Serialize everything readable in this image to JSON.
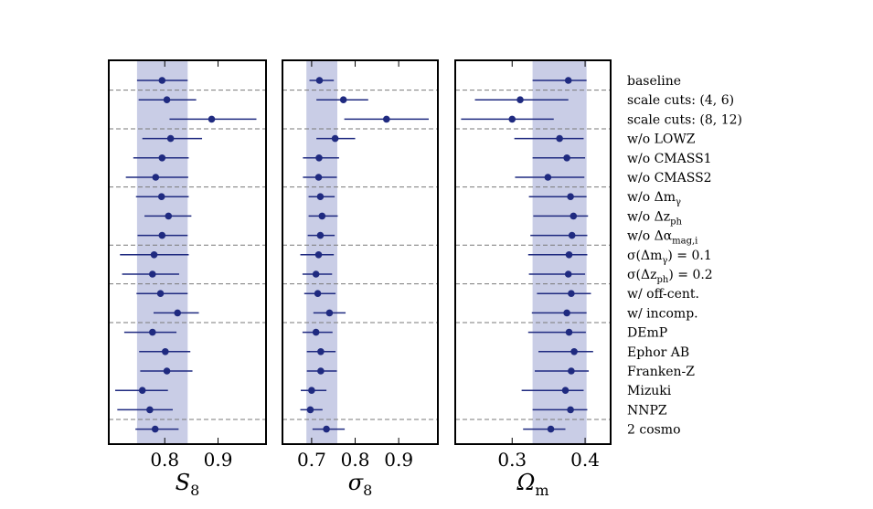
{
  "chart_data": {
    "type": "scatter",
    "description_type": "errorbar-forest",
    "rows": [
      {
        "label": "baseline",
        "sub": null
      },
      {
        "label": "scale cuts: (4, 6)",
        "sub": null
      },
      {
        "label": "scale cuts: (8, 12)",
        "sub": null
      },
      {
        "label": "w/o LOWZ",
        "sub": null
      },
      {
        "label": "w/o CMASS1",
        "sub": null
      },
      {
        "label": "w/o CMASS2",
        "sub": null
      },
      {
        "label": "w/o Δm",
        "sub": "γ"
      },
      {
        "label": "w/o Δz",
        "sub": "ph"
      },
      {
        "label": "w/o Δα",
        "sub": "mag,i"
      },
      {
        "label": "σ(Δm",
        "sub": "γ",
        "suffix": ") = 0.1"
      },
      {
        "label": "σ(Δz",
        "sub": "ph",
        "suffix": ") = 0.2"
      },
      {
        "label": "w/ off-cent.",
        "sub": null
      },
      {
        "label": "w/ incomp.",
        "sub": null
      },
      {
        "label": "DEmP",
        "sub": null
      },
      {
        "label": "Ephor AB",
        "sub": null
      },
      {
        "label": "Franken-Z",
        "sub": null
      },
      {
        "label": "Mizuki",
        "sub": null
      },
      {
        "label": "NNPZ",
        "sub": null
      },
      {
        "label": "2 cosmo",
        "sub": null
      }
    ],
    "separators_after_row": [
      0,
      2,
      5,
      8,
      10,
      12,
      17
    ],
    "panels": [
      {
        "xlabel": "S",
        "xlabel_sub": "8",
        "xlim": [
          0.695,
          0.99
        ],
        "ticks": [
          0.8,
          0.9
        ],
        "tick_labels": [
          "0.8",
          "0.9"
        ],
        "band": [
          0.748,
          0.843
        ],
        "points": [
          {
            "value": 0.795,
            "lo": 0.748,
            "hi": 0.843
          },
          {
            "value": 0.804,
            "lo": 0.751,
            "hi": 0.859
          },
          {
            "value": 0.888,
            "lo": 0.809,
            "hi": 0.972
          },
          {
            "value": 0.811,
            "lo": 0.758,
            "hi": 0.87
          },
          {
            "value": 0.795,
            "lo": 0.741,
            "hi": 0.845
          },
          {
            "value": 0.783,
            "lo": 0.727,
            "hi": 0.844
          },
          {
            "value": 0.794,
            "lo": 0.746,
            "hi": 0.845
          },
          {
            "value": 0.807,
            "lo": 0.762,
            "hi": 0.85
          },
          {
            "value": 0.795,
            "lo": 0.749,
            "hi": 0.843
          },
          {
            "value": 0.78,
            "lo": 0.716,
            "hi": 0.845
          },
          {
            "value": 0.777,
            "lo": 0.72,
            "hi": 0.827
          },
          {
            "value": 0.792,
            "lo": 0.747,
            "hi": 0.843
          },
          {
            "value": 0.824,
            "lo": 0.779,
            "hi": 0.864
          },
          {
            "value": 0.777,
            "lo": 0.724,
            "hi": 0.822
          },
          {
            "value": 0.801,
            "lo": 0.752,
            "hi": 0.848
          },
          {
            "value": 0.804,
            "lo": 0.754,
            "hi": 0.852
          },
          {
            "value": 0.758,
            "lo": 0.707,
            "hi": 0.806
          },
          {
            "value": 0.772,
            "lo": 0.711,
            "hi": 0.815
          },
          {
            "value": 0.782,
            "lo": 0.745,
            "hi": 0.826
          }
        ]
      },
      {
        "xlabel": "σ",
        "xlabel_sub": "8",
        "xlim": [
          0.633,
          0.99
        ],
        "ticks": [
          0.7,
          0.8,
          0.9
        ],
        "tick_labels": [
          "0.7",
          "0.8",
          "0.9"
        ],
        "band": [
          0.688,
          0.759
        ],
        "points": [
          {
            "value": 0.718,
            "lo": 0.695,
            "hi": 0.751
          },
          {
            "value": 0.773,
            "lo": 0.711,
            "hi": 0.83
          },
          {
            "value": 0.872,
            "lo": 0.775,
            "hi": 0.969
          },
          {
            "value": 0.754,
            "lo": 0.711,
            "hi": 0.8
          },
          {
            "value": 0.717,
            "lo": 0.68,
            "hi": 0.763
          },
          {
            "value": 0.716,
            "lo": 0.68,
            "hi": 0.758
          },
          {
            "value": 0.72,
            "lo": 0.693,
            "hi": 0.753
          },
          {
            "value": 0.724,
            "lo": 0.693,
            "hi": 0.76
          },
          {
            "value": 0.72,
            "lo": 0.691,
            "hi": 0.753
          },
          {
            "value": 0.716,
            "lo": 0.674,
            "hi": 0.751
          },
          {
            "value": 0.71,
            "lo": 0.679,
            "hi": 0.747
          },
          {
            "value": 0.714,
            "lo": 0.683,
            "hi": 0.755
          },
          {
            "value": 0.741,
            "lo": 0.704,
            "hi": 0.778
          },
          {
            "value": 0.71,
            "lo": 0.679,
            "hi": 0.748
          },
          {
            "value": 0.721,
            "lo": 0.689,
            "hi": 0.755
          },
          {
            "value": 0.721,
            "lo": 0.689,
            "hi": 0.758
          },
          {
            "value": 0.7,
            "lo": 0.675,
            "hi": 0.734
          },
          {
            "value": 0.697,
            "lo": 0.674,
            "hi": 0.725
          },
          {
            "value": 0.734,
            "lo": 0.702,
            "hi": 0.776
          }
        ]
      },
      {
        "xlabel": "Ω",
        "xlabel_sub": "m",
        "xlim": [
          0.222,
          0.435
        ],
        "ticks": [
          0.3,
          0.4
        ],
        "tick_labels": [
          "0.3",
          "0.4"
        ],
        "band": [
          0.328,
          0.402
        ],
        "points": [
          {
            "value": 0.377,
            "lo": 0.328,
            "hi": 0.402
          },
          {
            "value": 0.311,
            "lo": 0.249,
            "hi": 0.377
          },
          {
            "value": 0.3,
            "lo": 0.23,
            "hi": 0.357
          },
          {
            "value": 0.365,
            "lo": 0.303,
            "hi": 0.398
          },
          {
            "value": 0.375,
            "lo": 0.328,
            "hi": 0.4
          },
          {
            "value": 0.349,
            "lo": 0.304,
            "hi": 0.399
          },
          {
            "value": 0.38,
            "lo": 0.323,
            "hi": 0.402
          },
          {
            "value": 0.384,
            "lo": 0.329,
            "hi": 0.404
          },
          {
            "value": 0.382,
            "lo": 0.325,
            "hi": 0.403
          },
          {
            "value": 0.378,
            "lo": 0.322,
            "hi": 0.403
          },
          {
            "value": 0.377,
            "lo": 0.323,
            "hi": 0.4
          },
          {
            "value": 0.381,
            "lo": 0.334,
            "hi": 0.408
          },
          {
            "value": 0.375,
            "lo": 0.327,
            "hi": 0.402
          },
          {
            "value": 0.378,
            "lo": 0.322,
            "hi": 0.401
          },
          {
            "value": 0.385,
            "lo": 0.336,
            "hi": 0.411
          },
          {
            "value": 0.381,
            "lo": 0.331,
            "hi": 0.405
          },
          {
            "value": 0.373,
            "lo": 0.313,
            "hi": 0.398
          },
          {
            "value": 0.38,
            "lo": 0.328,
            "hi": 0.403
          },
          {
            "value": 0.353,
            "lo": 0.315,
            "hi": 0.373
          }
        ]
      }
    ]
  }
}
